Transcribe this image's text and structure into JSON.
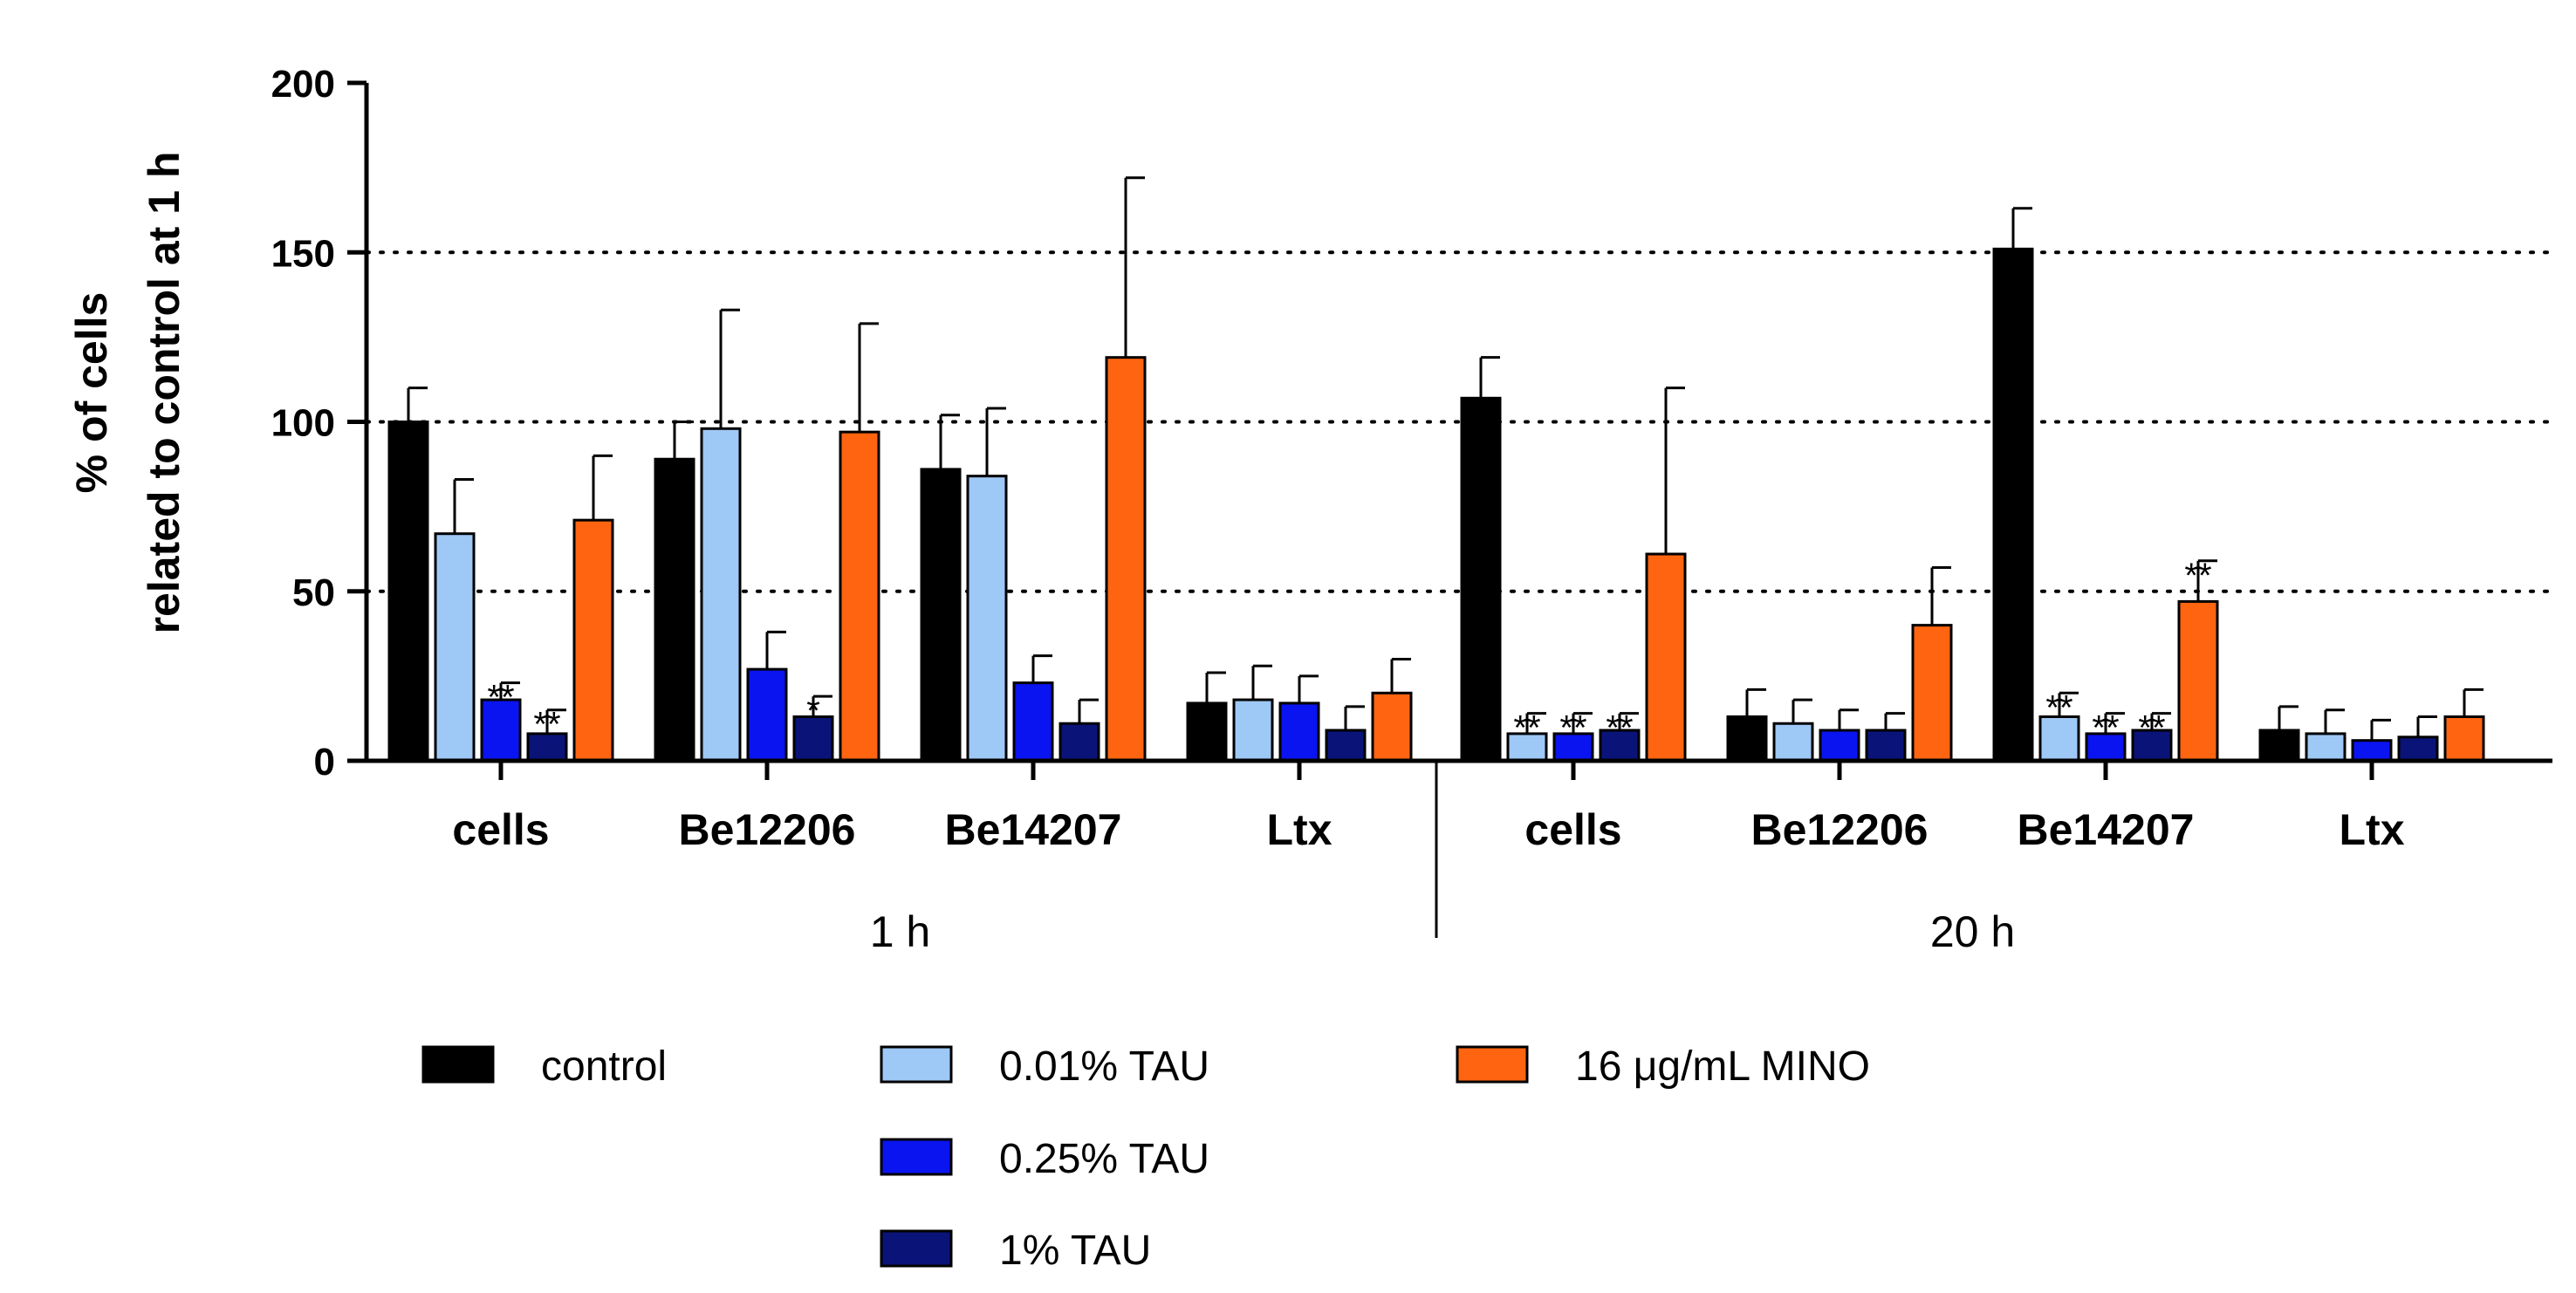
{
  "chart_data": {
    "type": "bar",
    "ylabel_line1": "% of cells",
    "ylabel_line2": "related to control at 1 h",
    "ylim": [
      0,
      200
    ],
    "yticks": [
      "0",
      "50",
      "100",
      "150",
      "200"
    ],
    "gridlines": [
      50,
      100,
      150
    ],
    "groups": [
      {
        "label": "1 h",
        "categories": [
          "cells",
          "Be12206",
          "Be14207",
          "Ltx"
        ]
      },
      {
        "label": "20 h",
        "categories": [
          "cells",
          "Be12206",
          "Be14207",
          "Ltx"
        ]
      }
    ],
    "series": [
      {
        "name": "control",
        "color": "#000000",
        "values": [
          100,
          89,
          86,
          17,
          107,
          13,
          151,
          9
        ],
        "errors": [
          10,
          11,
          16,
          9,
          12,
          8,
          12,
          7
        ]
      },
      {
        "name": "0.01% TAU",
        "color": "#9ec8f5",
        "values": [
          67,
          98,
          84,
          18,
          8,
          11,
          13,
          8
        ],
        "errors": [
          16,
          35,
          20,
          10,
          6,
          7,
          7,
          7
        ]
      },
      {
        "name": "0.25% TAU",
        "color": "#0a14f0",
        "values": [
          18,
          27,
          23,
          17,
          8,
          9,
          8,
          6
        ],
        "errors": [
          5,
          11,
          8,
          8,
          6,
          6,
          6,
          6
        ]
      },
      {
        "name": "1% TAU",
        "color": "#0a1478",
        "values": [
          8,
          13,
          11,
          9,
          9,
          9,
          9,
          7
        ],
        "errors": [
          7,
          6,
          7,
          7,
          5,
          5,
          5,
          6
        ]
      },
      {
        "name": "16 μg/mL MINO",
        "color": "#ff6410",
        "values": [
          71,
          97,
          119,
          20,
          61,
          40,
          47,
          13
        ],
        "errors": [
          19,
          32,
          53,
          10,
          49,
          17,
          12,
          8
        ]
      }
    ],
    "annotations": [
      {
        "category_index": 0,
        "series_index": 2,
        "text": "**"
      },
      {
        "category_index": 0,
        "series_index": 3,
        "text": "**"
      },
      {
        "category_index": 1,
        "series_index": 3,
        "text": "*"
      },
      {
        "category_index": 4,
        "series_index": 1,
        "text": "**"
      },
      {
        "category_index": 4,
        "series_index": 2,
        "text": "**"
      },
      {
        "category_index": 4,
        "series_index": 3,
        "text": "**"
      },
      {
        "category_index": 6,
        "series_index": 1,
        "text": "**"
      },
      {
        "category_index": 6,
        "series_index": 2,
        "text": "**"
      },
      {
        "category_index": 6,
        "series_index": 3,
        "text": "**"
      },
      {
        "category_index": 6,
        "series_index": 4,
        "text": "**"
      }
    ],
    "legend": [
      "control",
      "0.01% TAU",
      "16 μg/mL MINO",
      "0.25% TAU",
      "1% TAU"
    ]
  }
}
